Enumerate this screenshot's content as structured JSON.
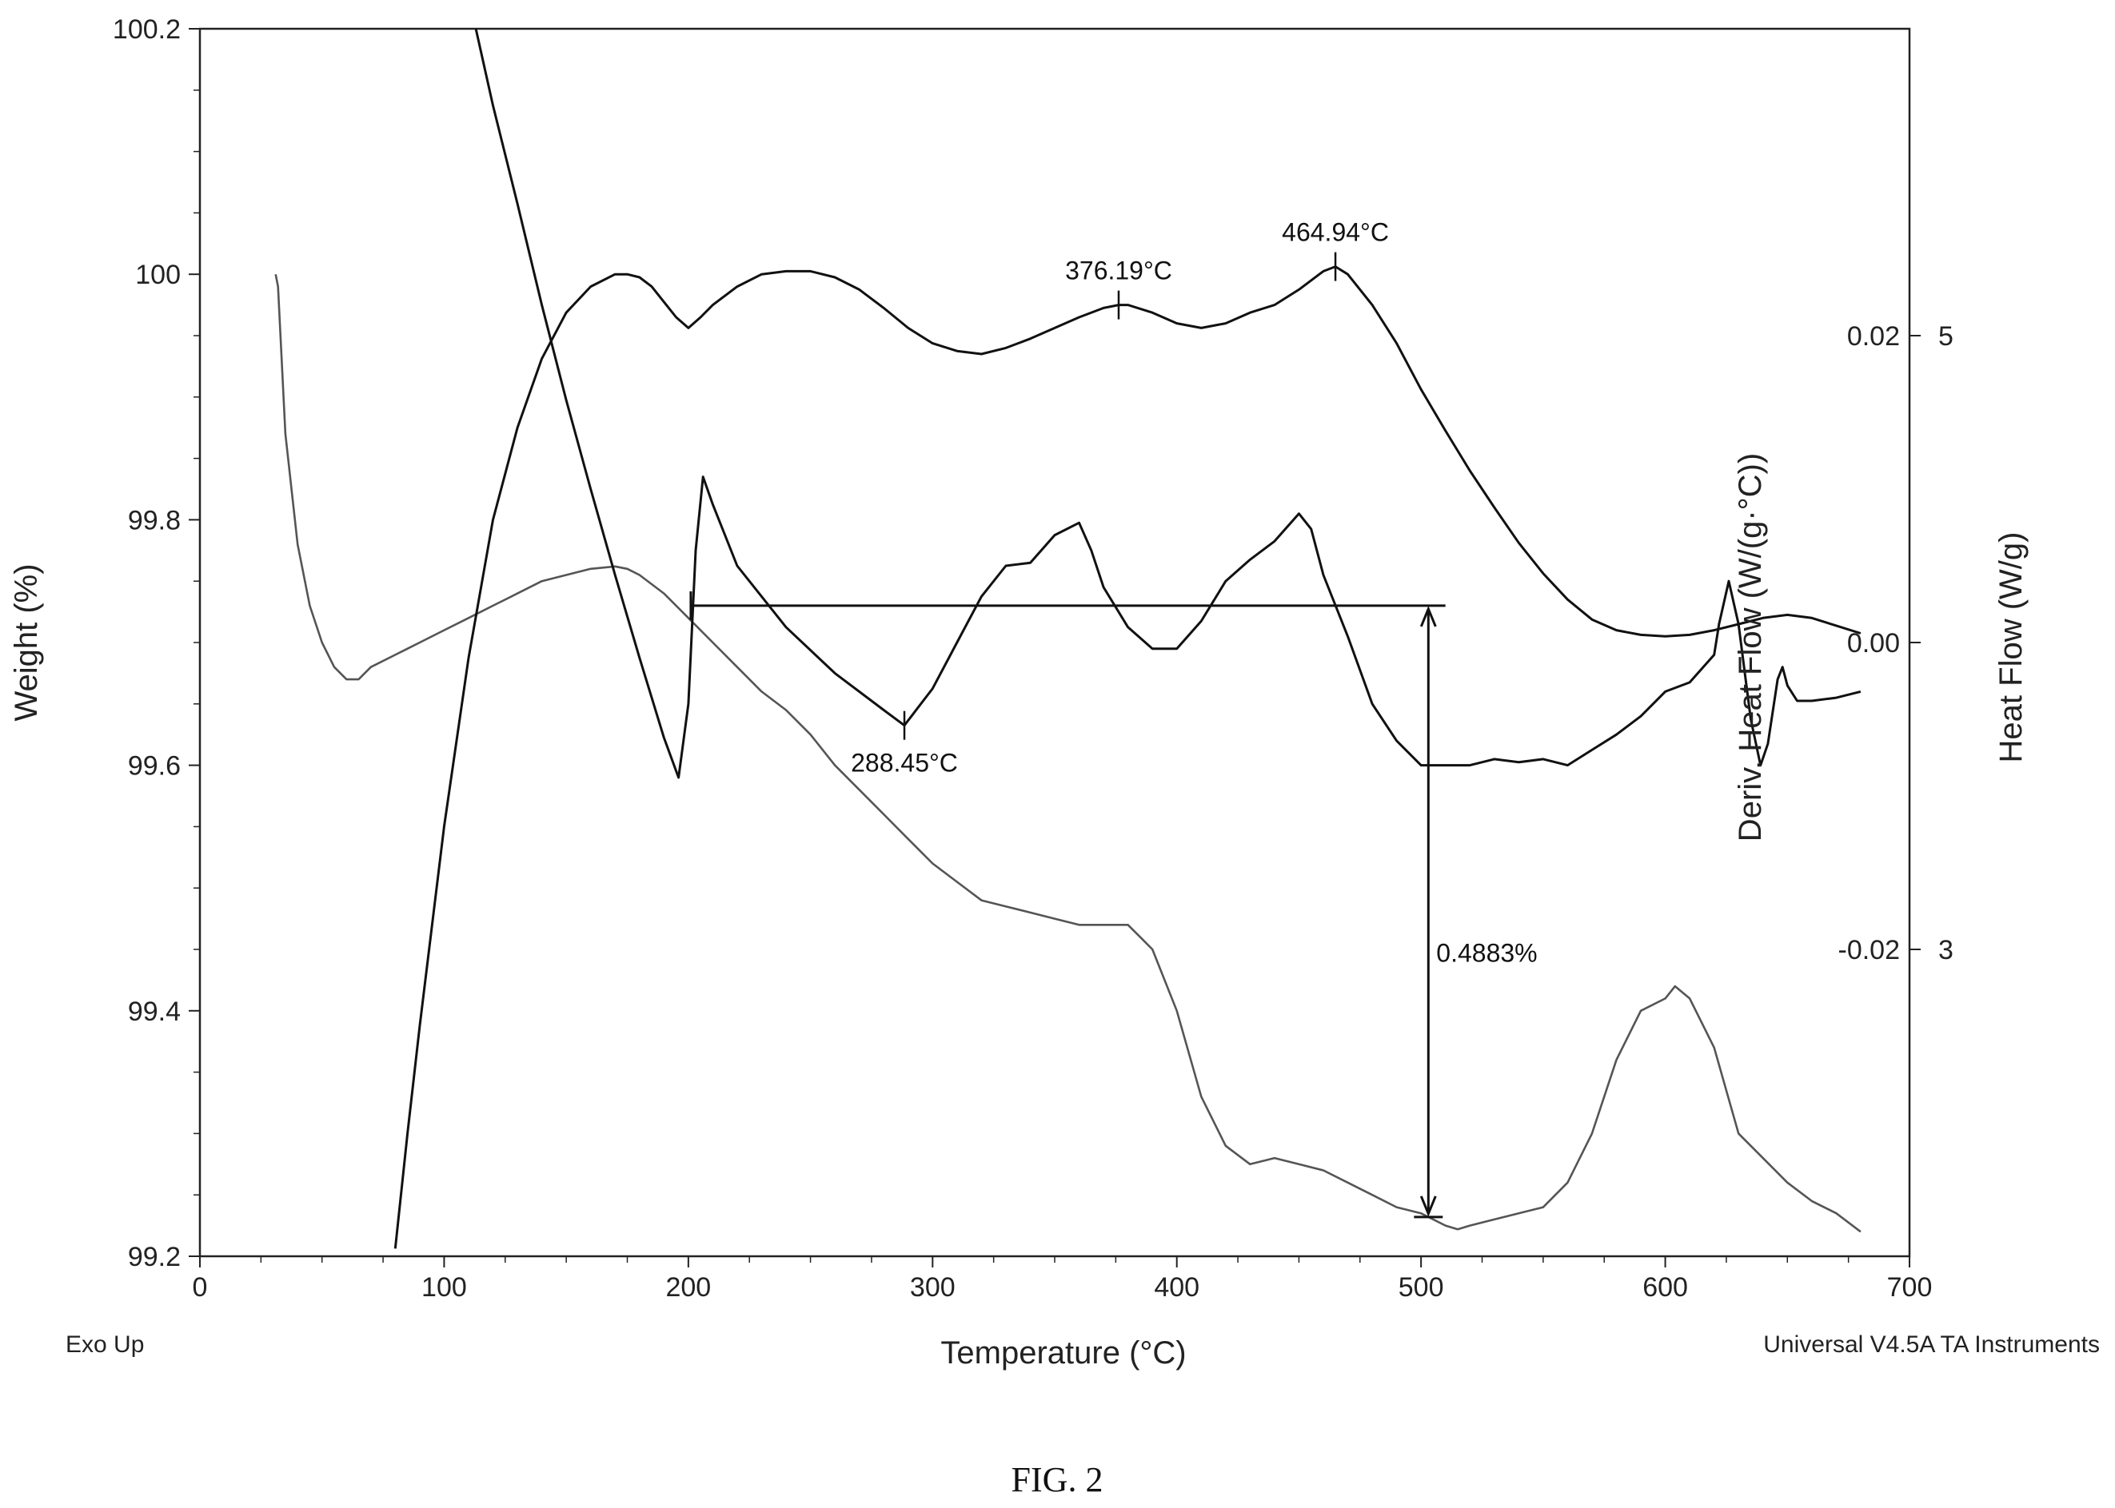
{
  "figure": {
    "caption": "FIG. 2"
  },
  "chart_data": {
    "type": "line",
    "title": "",
    "xlabel": "Temperature (°C)",
    "ylabel_left": "Weight (%)",
    "ylabel_right_inner": "Deriv. Heat Flow (W/(g·°C))",
    "ylabel_right_outer": "Heat Flow (W/g)",
    "xlim": [
      0,
      700
    ],
    "ylim_left": [
      99.2,
      100.2
    ],
    "ylim_right_inner": [
      -0.04,
      0.04
    ],
    "ylim_right_outer": [
      2,
      6
    ],
    "x_ticks": [
      "0",
      "100",
      "200",
      "300",
      "400",
      "500",
      "600",
      "700"
    ],
    "y_left_ticks": [
      "99.2",
      "99.4",
      "99.6",
      "99.8",
      "100",
      "100.2"
    ],
    "y_right_inner_ticks": [
      "0.02",
      "0.00",
      "-0.02"
    ],
    "y_right_outer_ticks": [
      "5",
      "3"
    ],
    "grid": false,
    "footnote_left": "Exo Up",
    "footnote_right": "Universal V4.5A TA Instruments",
    "series": [
      {
        "axis": "left",
        "color": "#555555",
        "x": [
          31,
          32,
          35,
          40,
          45,
          50,
          55,
          60,
          65,
          70,
          80,
          90,
          100,
          110,
          120,
          130,
          140,
          150,
          160,
          170,
          175,
          180,
          190,
          200,
          210,
          220,
          230,
          240,
          250,
          260,
          270,
          280,
          290,
          300,
          310,
          320,
          330,
          340,
          350,
          360,
          370,
          380,
          385,
          390,
          400,
          410,
          420,
          430,
          440,
          450,
          460,
          470,
          480,
          490,
          500,
          510,
          515,
          520,
          530,
          540,
          550,
          560,
          570,
          580,
          590,
          600,
          604,
          610,
          620,
          630,
          640,
          650,
          660,
          670,
          680
        ],
        "y": [
          100.0,
          99.99,
          99.87,
          99.78,
          99.73,
          99.7,
          99.68,
          99.67,
          99.67,
          99.68,
          99.69,
          99.7,
          99.71,
          99.72,
          99.73,
          99.74,
          99.75,
          99.755,
          99.76,
          99.762,
          99.76,
          99.755,
          99.74,
          99.72,
          99.7,
          99.68,
          99.66,
          99.645,
          99.625,
          99.6,
          99.58,
          99.56,
          99.54,
          99.52,
          99.505,
          99.49,
          99.485,
          99.48,
          99.475,
          99.47,
          99.47,
          99.47,
          99.46,
          99.45,
          99.4,
          99.33,
          99.29,
          99.275,
          99.28,
          99.275,
          99.27,
          99.26,
          99.25,
          99.24,
          99.235,
          99.225,
          99.222,
          99.225,
          99.23,
          99.235,
          99.24,
          99.26,
          99.3,
          99.36,
          99.4,
          99.41,
          99.42,
          99.41,
          99.37,
          99.3,
          99.28,
          99.26,
          99.245,
          99.235,
          99.22
        ]
      },
      {
        "axis": "right_inner",
        "color": "#111111",
        "x": [
          80,
          85,
          90,
          100,
          110,
          120,
          130,
          140,
          150,
          160,
          170,
          175,
          180,
          185,
          190,
          195,
          200,
          205,
          210,
          220,
          230,
          240,
          250,
          260,
          270,
          280,
          290,
          300,
          310,
          320,
          330,
          340,
          350,
          360,
          370,
          376.19,
          380,
          390,
          400,
          410,
          420,
          430,
          440,
          450,
          460,
          464.94,
          470,
          480,
          490,
          500,
          510,
          520,
          530,
          540,
          550,
          560,
          570,
          580,
          590,
          600,
          610,
          620,
          630,
          640,
          650,
          660,
          670,
          680
        ],
        "y": [
          -0.0395,
          -0.032,
          -0.025,
          -0.012,
          -0.001,
          0.008,
          0.014,
          0.0185,
          0.0215,
          0.0232,
          0.024,
          0.024,
          0.0238,
          0.0232,
          0.0222,
          0.0212,
          0.0205,
          0.0212,
          0.022,
          0.0232,
          0.024,
          0.0242,
          0.0242,
          0.0238,
          0.023,
          0.0218,
          0.0205,
          0.0195,
          0.019,
          0.0188,
          0.0192,
          0.0198,
          0.0205,
          0.0212,
          0.0218,
          0.022,
          0.022,
          0.0215,
          0.0208,
          0.0205,
          0.0208,
          0.0215,
          0.022,
          0.023,
          0.0242,
          0.0245,
          0.024,
          0.022,
          0.0195,
          0.0165,
          0.0138,
          0.0112,
          0.0088,
          0.0065,
          0.0045,
          0.0028,
          0.0015,
          0.0008,
          0.0005,
          0.0004,
          0.0005,
          0.0008,
          0.0012,
          0.0016,
          0.0018,
          0.0016,
          0.0011,
          0.0006
        ]
      },
      {
        "axis": "right_outer",
        "color": "#111111",
        "x": [
          113,
          120,
          130,
          140,
          150,
          160,
          170,
          180,
          190,
          196,
          200,
          203,
          206,
          210,
          220,
          240,
          260,
          280,
          288.45,
          300,
          310,
          320,
          330,
          340,
          350,
          360,
          365,
          370,
          380,
          390,
          400,
          410,
          420,
          430,
          440,
          450,
          455,
          460,
          470,
          480,
          490,
          500,
          510,
          520,
          530,
          540,
          550,
          560,
          570,
          580,
          590,
          600,
          610,
          620,
          622,
          626,
          630,
          635,
          639,
          642,
          646,
          648,
          650,
          654,
          660,
          670,
          680
        ],
        "y": [
          6.0,
          5.75,
          5.43,
          5.1,
          4.79,
          4.5,
          4.22,
          3.95,
          3.69,
          3.56,
          3.8,
          4.3,
          4.54,
          4.45,
          4.25,
          4.05,
          3.9,
          3.78,
          3.73,
          3.85,
          4.0,
          4.15,
          4.25,
          4.26,
          4.35,
          4.39,
          4.3,
          4.18,
          4.05,
          3.98,
          3.98,
          4.07,
          4.2,
          4.27,
          4.33,
          4.42,
          4.37,
          4.22,
          4.02,
          3.8,
          3.68,
          3.6,
          3.6,
          3.6,
          3.62,
          3.61,
          3.62,
          3.6,
          3.65,
          3.7,
          3.76,
          3.84,
          3.87,
          3.96,
          4.06,
          4.2,
          4.06,
          3.75,
          3.6,
          3.67,
          3.88,
          3.92,
          3.86,
          3.81,
          3.81,
          3.82,
          3.84
        ]
      }
    ],
    "annotations": [
      {
        "text": "376.19°C",
        "x": 376.19,
        "axis": "right_inner",
        "y": 0.022
      },
      {
        "text": "464.94°C",
        "x": 464.94,
        "axis": "right_inner",
        "y": 0.0245
      },
      {
        "text": "288.45°C",
        "x": 288.45,
        "axis": "right_outer",
        "y": 3.73
      },
      {
        "text": "0.4883%",
        "x": 503,
        "axis": "left",
        "y": 99.73,
        "y_end": 99.232,
        "x_from": 201,
        "x_to": 510
      }
    ]
  }
}
